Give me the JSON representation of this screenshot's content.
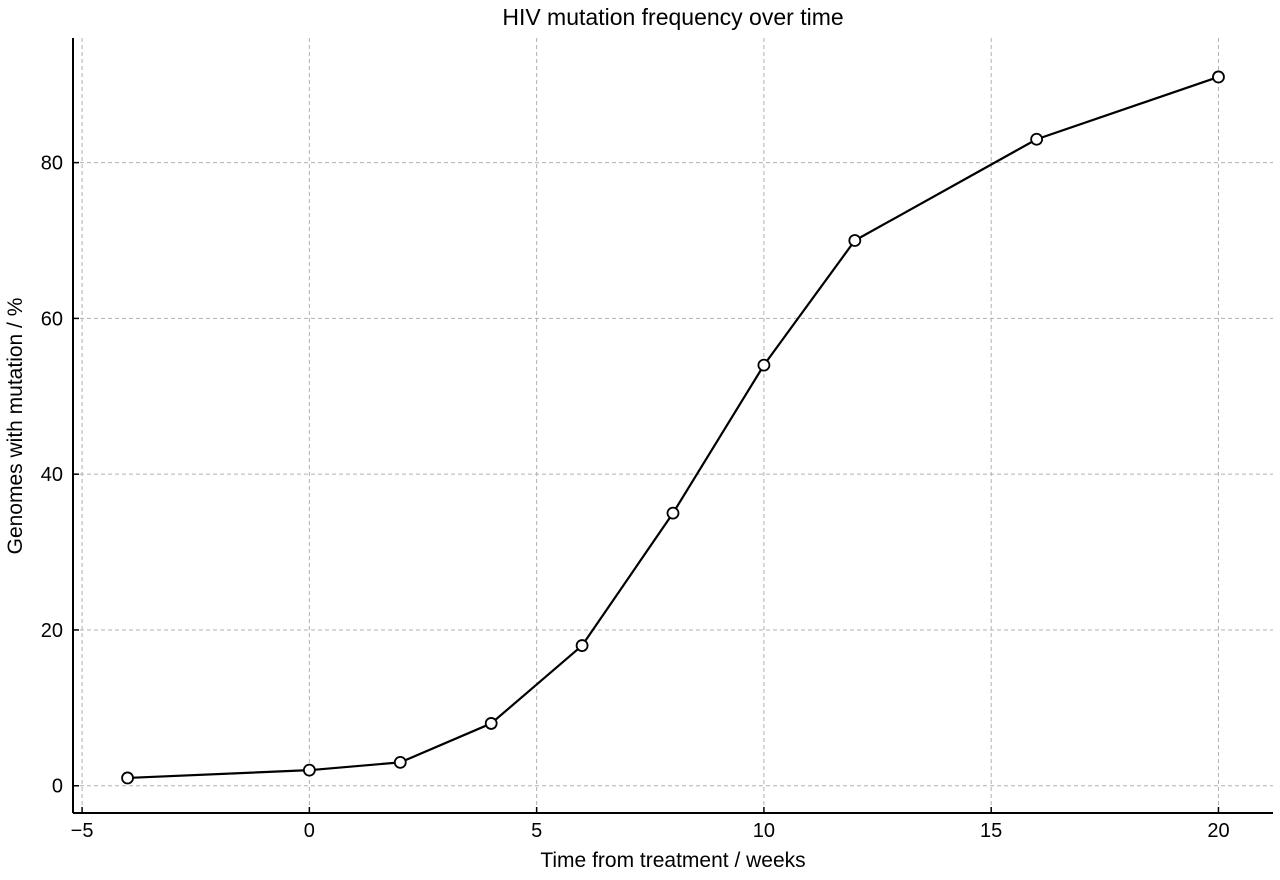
{
  "chart_data": {
    "type": "line",
    "title": "HIV mutation frequency over time",
    "xlabel": "Time from treatment / weeks",
    "ylabel": "Genomes with mutation / %",
    "xlim": [
      -5.2,
      21.2
    ],
    "ylim": [
      -3.5,
      96
    ],
    "x_ticks": [
      -5,
      0,
      5,
      10,
      15,
      20
    ],
    "x_tick_labels": [
      "−5",
      "0",
      "5",
      "10",
      "15",
      "20"
    ],
    "y_ticks": [
      0,
      20,
      40,
      60,
      80
    ],
    "y_tick_labels": [
      "0",
      "20",
      "40",
      "60",
      "80"
    ],
    "grid": true,
    "legend": false,
    "series": [
      {
        "x": [
          -4,
          0,
          2,
          4,
          6,
          8,
          10,
          12,
          16,
          20
        ],
        "values": [
          1,
          2,
          3,
          8,
          18,
          35,
          54,
          70,
          83,
          91
        ],
        "color": "#000000",
        "marker": "open-circle"
      }
    ]
  }
}
